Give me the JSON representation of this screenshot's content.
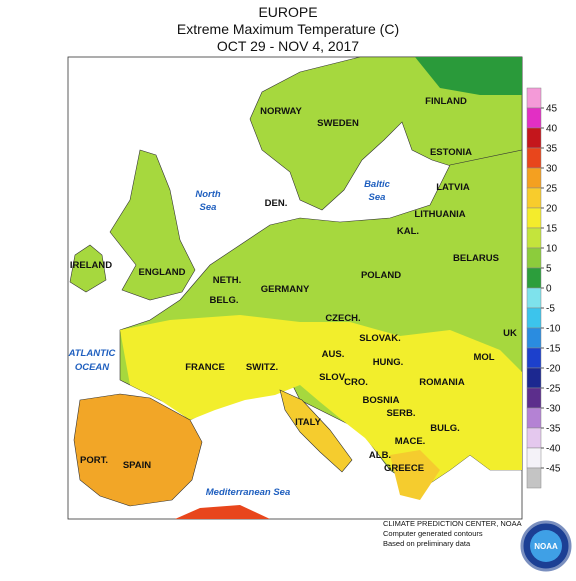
{
  "header": {
    "title": "EUROPE",
    "subtitle": "Extreme Maximum Temperature (C)",
    "dates": "OCT 29 - NOV 4, 2017"
  },
  "countries": [
    "FINLAND",
    "NORWAY",
    "SWEDEN",
    "ESTONIA",
    "LATVIA",
    "DEN.",
    "LITHUANIA",
    "KAL.",
    "IRELAND",
    "ENGLAND",
    "BELARUS",
    "POLAND",
    "NETH.",
    "GERMANY",
    "BELG.",
    "CZECH.",
    "UK",
    "SLOVAK.",
    "MOL",
    "FRANCE",
    "AUS.",
    "HUNG.",
    "SWITZ.",
    "SLOV.",
    "ROMANIA",
    "CRO.",
    "BOSNIA",
    "ITALY",
    "SERB.",
    "BULG.",
    "MACE.",
    "ALB.",
    "GREECE",
    "PORT.",
    "SPAIN"
  ],
  "seas": [
    "North",
    "Sea",
    "Baltic",
    "Sea",
    "ATLANTIC",
    "OCEAN",
    "Mediterranean Sea"
  ],
  "legend": {
    "ticks": [
      45,
      40,
      35,
      30,
      25,
      20,
      15,
      10,
      5,
      0,
      -5,
      -10,
      -15,
      -20,
      -25,
      -30,
      -35,
      -40,
      -45
    ],
    "colors": [
      "#f49ad8",
      "#e22fc4",
      "#c4161c",
      "#e8461c",
      "#f4a020",
      "#f8cc2c",
      "#f4ec2c",
      "#c4e43c",
      "#8ccc3c",
      "#2c9e3c",
      "#7ee2ec",
      "#3cc4ec",
      "#2a8ce0",
      "#1c40cc",
      "#1c2890",
      "#5c2e8c",
      "#b482d4",
      "#e4c8ee",
      "#f4f2f8",
      "#c4c4c4"
    ]
  },
  "footer": {
    "lines": [
      "CLIMATE PREDICTION CENTER, NOAA",
      "Computer generated contours",
      "Based on preliminary data"
    ],
    "logo_text": "NOAA"
  }
}
